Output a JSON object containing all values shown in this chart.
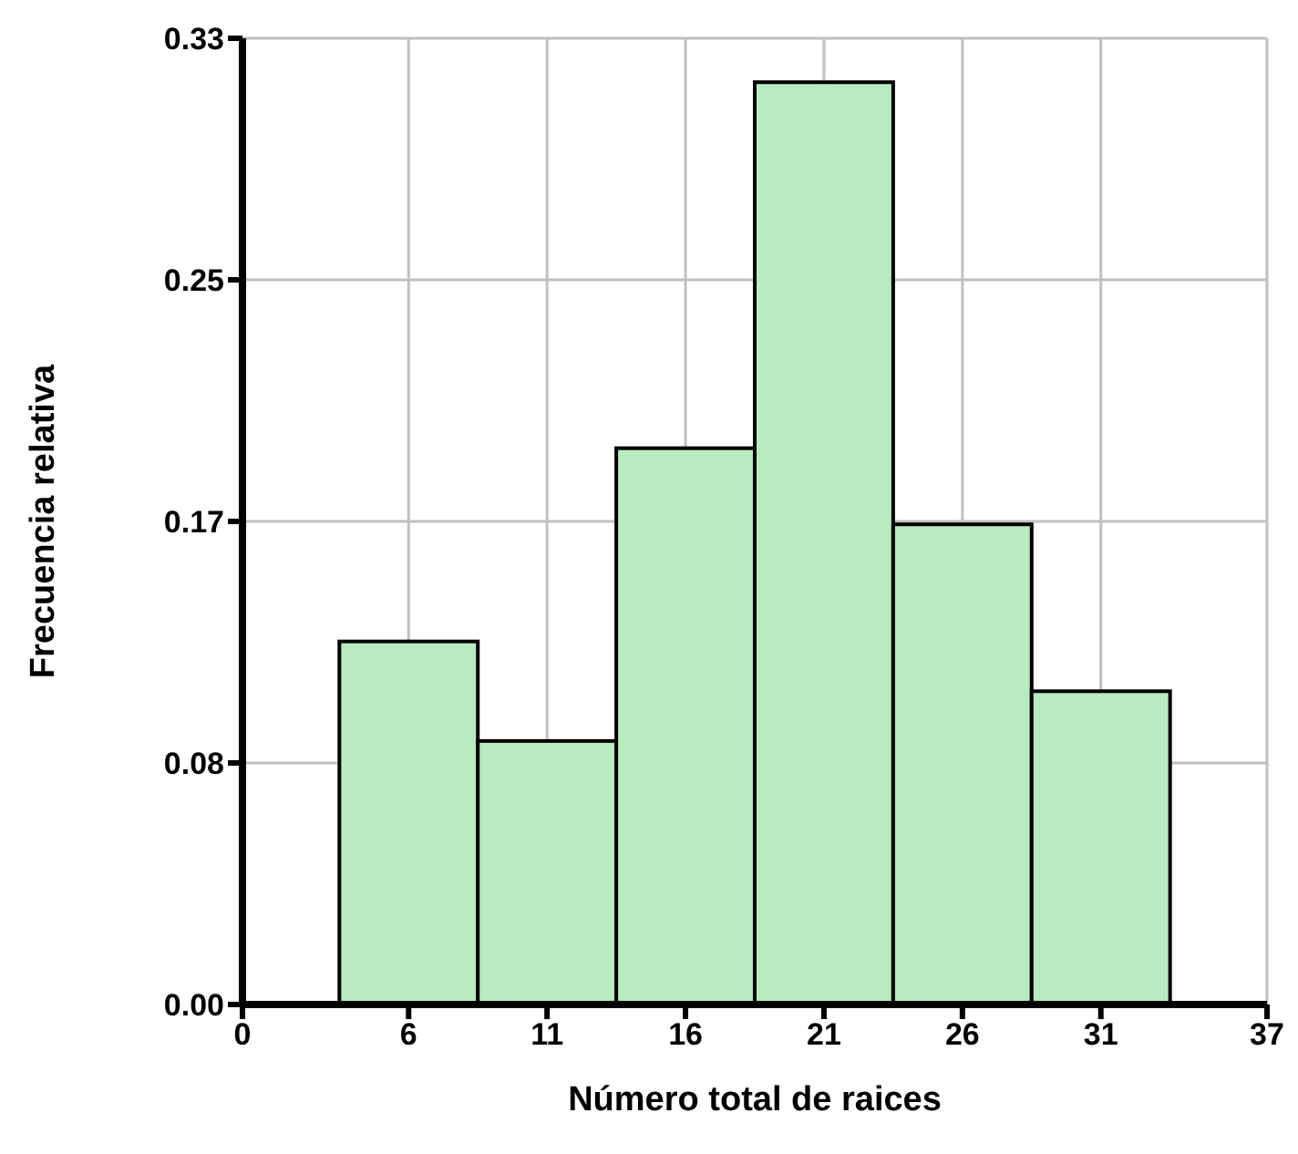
{
  "chart_data": {
    "type": "histogram",
    "xlabel": "Número total de raices",
    "ylabel": "Frecuencia relativa",
    "bins": [
      3.5,
      8.5,
      13.5,
      18.5,
      23.5,
      28.5,
      33.5
    ],
    "values": [
      0.124,
      0.09,
      0.19,
      0.315,
      0.164,
      0.107
    ],
    "color": "#b8ebc0",
    "xlim": [
      0,
      37
    ],
    "xticks": [
      0,
      6,
      11,
      16,
      21,
      26,
      31,
      37
    ],
    "ylim": [
      0,
      0.33
    ],
    "yticks": [
      {
        "value": 0,
        "label": "0.00"
      },
      {
        "value": 0.0825,
        "label": "0.08"
      },
      {
        "value": 0.165,
        "label": "0.17"
      },
      {
        "value": 0.2475,
        "label": "0.25"
      },
      {
        "value": 0.33,
        "label": "0.33"
      }
    ],
    "grid": true
  }
}
